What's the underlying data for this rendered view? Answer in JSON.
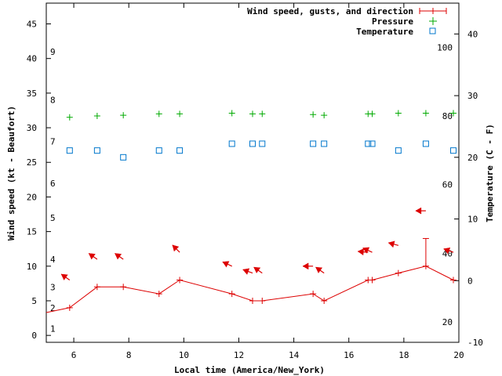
{
  "chart_data": {
    "type": "line",
    "title": "",
    "xlabel": "Local time (America/New_York)",
    "ylabel_left": "Wind speed (kt - Beaufort)",
    "ylabel_right": "Temperature (C - F)",
    "xlim": [
      5,
      20
    ],
    "ylim_left": [
      -1,
      48
    ],
    "ylim_right": [
      -10,
      45
    ],
    "x_ticks": [
      6,
      8,
      10,
      12,
      14,
      16,
      18,
      20
    ],
    "y_left_ticks": [
      0,
      5,
      10,
      15,
      20,
      25,
      30,
      35,
      40,
      45
    ],
    "y_right_ticks": [
      -10,
      0,
      10,
      20,
      30,
      40
    ],
    "beaufort_labels": [
      {
        "label": "1",
        "kt": 1
      },
      {
        "label": "2",
        "kt": 4
      },
      {
        "label": "3",
        "kt": 7
      },
      {
        "label": "4",
        "kt": 11
      },
      {
        "label": "5",
        "kt": 17
      },
      {
        "label": "6",
        "kt": 22
      },
      {
        "label": "7",
        "kt": 28
      },
      {
        "label": "8",
        "kt": 34
      },
      {
        "label": "9",
        "kt": 41
      }
    ],
    "fahrenheit_labels": [
      {
        "label": "20",
        "c": -6.7
      },
      {
        "label": "40",
        "c": 4.4
      },
      {
        "label": "60",
        "c": 15.6
      },
      {
        "label": "80",
        "c": 26.7
      },
      {
        "label": "100",
        "c": 37.8
      }
    ],
    "legend": {
      "position": "top-right"
    },
    "series": [
      {
        "name": "Wind speed, gusts, and direction",
        "axis": "left",
        "color": "#dd0000",
        "x": [
          5.0,
          5.85,
          6.85,
          7.8,
          9.1,
          9.85,
          11.75,
          12.5,
          12.85,
          14.7,
          15.1,
          16.7,
          16.85,
          17.8,
          18.8,
          19.8
        ],
        "y": [
          3.3,
          4,
          7,
          7,
          6,
          8,
          6,
          5,
          5,
          6,
          5,
          8,
          8,
          9,
          10,
          8
        ],
        "gusts": [
          {
            "x": 18.8,
            "y": 14
          }
        ],
        "direction_arrows": [
          {
            "x": 5.85,
            "y": 8,
            "angle": 215
          },
          {
            "x": 6.85,
            "y": 11,
            "angle": 215
          },
          {
            "x": 7.8,
            "y": 11,
            "angle": 215
          },
          {
            "x": 9.85,
            "y": 12,
            "angle": 225
          },
          {
            "x": 11.75,
            "y": 10,
            "angle": 205
          },
          {
            "x": 12.5,
            "y": 9,
            "angle": 200
          },
          {
            "x": 12.85,
            "y": 9,
            "angle": 215
          },
          {
            "x": 14.7,
            "y": 10,
            "angle": 180
          },
          {
            "x": 15.1,
            "y": 9,
            "angle": 215
          },
          {
            "x": 16.7,
            "y": 12,
            "angle": 185
          },
          {
            "x": 16.85,
            "y": 12,
            "angle": 205
          },
          {
            "x": 17.8,
            "y": 13,
            "angle": 195
          },
          {
            "x": 18.8,
            "y": 18,
            "angle": 180
          },
          {
            "x": 19.8,
            "y": 12,
            "angle": 200
          }
        ]
      },
      {
        "name": "Pressure",
        "axis": "left",
        "color": "#00aa00",
        "x": [
          5.85,
          6.85,
          7.8,
          9.1,
          9.85,
          11.75,
          12.5,
          12.85,
          14.7,
          15.1,
          16.7,
          16.85,
          17.8,
          18.8,
          19.8
        ],
        "y": [
          31.5,
          31.7,
          31.8,
          32,
          32,
          32.1,
          32,
          32,
          31.9,
          31.8,
          32,
          32,
          32.1,
          32.1,
          32.1
        ]
      },
      {
        "name": "Temperature",
        "axis": "right",
        "color": "#0077cc",
        "x": [
          5.85,
          6.85,
          7.8,
          9.1,
          9.85,
          11.75,
          12.5,
          12.85,
          14.7,
          15.1,
          16.7,
          16.85,
          17.8,
          18.8,
          19.8
        ],
        "y": [
          21.1,
          21.1,
          20,
          21.1,
          21.1,
          22.2,
          22.2,
          22.2,
          22.2,
          22.2,
          22.2,
          22.2,
          21.1,
          22.2,
          21.1
        ]
      }
    ]
  }
}
